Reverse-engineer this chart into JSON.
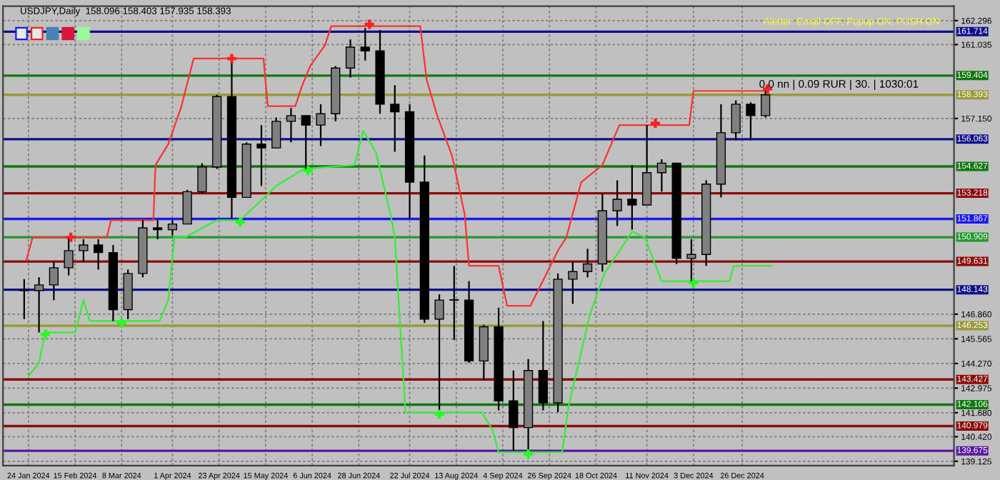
{
  "chart_data": {
    "type": "candlestick",
    "title": "USDJPY,Daily  158.096 158.403 157.935 158.393",
    "annotations": [
      "Alerter: Email OFF, Popup ON, PUSH ON",
      "0.0 nn | 0.09 RUR | 30. | 1030:01"
    ],
    "x": [
      "2024-01-22",
      "2024-01-29",
      "2024-02-05",
      "2024-02-12",
      "2024-02-19",
      "2024-02-26",
      "2024-03-04",
      "2024-03-11",
      "2024-03-18",
      "2024-03-25",
      "2024-04-01",
      "2024-04-08",
      "2024-04-15",
      "2024-04-22",
      "2024-04-29",
      "2024-05-06",
      "2024-05-13",
      "2024-05-20",
      "2024-05-27",
      "2024-06-03",
      "2024-06-10",
      "2024-06-17",
      "2024-06-24",
      "2024-07-01",
      "2024-07-08",
      "2024-07-15",
      "2024-07-22",
      "2024-07-29",
      "2024-08-05",
      "2024-08-12",
      "2024-08-19",
      "2024-08-26",
      "2024-09-02",
      "2024-09-09",
      "2024-09-16",
      "2024-09-23",
      "2024-09-30",
      "2024-10-07",
      "2024-10-14",
      "2024-10-21",
      "2024-10-28",
      "2024-11-04",
      "2024-11-11",
      "2024-11-18",
      "2024-11-25",
      "2024-12-02",
      "2024-12-09",
      "2024-12-16",
      "2024-12-23",
      "2024-12-30",
      "2025-01-06"
    ],
    "ohlc": [
      [
        148.1,
        148.7,
        146.6,
        148.1
      ],
      [
        148.1,
        148.8,
        145.9,
        148.4
      ],
      [
        148.4,
        149.6,
        147.6,
        149.3
      ],
      [
        149.3,
        150.9,
        148.9,
        150.2
      ],
      [
        150.2,
        150.8,
        149.6,
        150.5
      ],
      [
        150.5,
        150.8,
        149.2,
        150.1
      ],
      [
        150.1,
        150.5,
        146.5,
        147.1
      ],
      [
        147.1,
        149.2,
        146.6,
        149.0
      ],
      [
        149.0,
        151.8,
        148.8,
        151.4
      ],
      [
        151.4,
        151.8,
        150.8,
        151.3
      ],
      [
        151.3,
        151.8,
        151.0,
        151.6
      ],
      [
        151.6,
        153.4,
        151.6,
        153.3
      ],
      [
        153.3,
        154.8,
        153.2,
        154.6
      ],
      [
        154.6,
        158.4,
        154.5,
        158.3
      ],
      [
        158.3,
        160.2,
        151.9,
        153.0
      ],
      [
        153.0,
        155.9,
        153.0,
        155.8
      ],
      [
        155.8,
        156.8,
        153.6,
        155.6
      ],
      [
        155.6,
        157.2,
        155.6,
        157.0
      ],
      [
        157.0,
        157.7,
        155.9,
        157.3
      ],
      [
        157.3,
        157.3,
        154.5,
        156.8
      ],
      [
        156.8,
        157.9,
        155.7,
        157.4
      ],
      [
        157.4,
        159.9,
        157.0,
        159.8
      ],
      [
        159.8,
        161.3,
        159.3,
        160.9
      ],
      [
        160.9,
        161.9,
        160.2,
        160.7
      ],
      [
        160.7,
        161.8,
        157.4,
        157.9
      ],
      [
        157.9,
        158.9,
        155.4,
        157.5
      ],
      [
        157.5,
        157.9,
        151.9,
        153.8
      ],
      [
        153.8,
        155.2,
        146.4,
        146.6
      ],
      [
        146.6,
        147.9,
        141.7,
        147.6
      ],
      [
        147.6,
        149.4,
        145.5,
        147.6
      ],
      [
        147.6,
        148.6,
        144.3,
        144.4
      ],
      [
        144.4,
        146.3,
        143.4,
        146.2
      ],
      [
        146.2,
        147.2,
        141.8,
        142.3
      ],
      [
        142.3,
        143.9,
        139.7,
        140.9
      ],
      [
        140.9,
        144.5,
        139.6,
        143.9
      ],
      [
        143.9,
        146.5,
        141.8,
        142.2
      ],
      [
        142.2,
        149.0,
        141.7,
        148.7
      ],
      [
        148.7,
        149.6,
        147.4,
        149.1
      ],
      [
        149.1,
        150.3,
        148.8,
        149.5
      ],
      [
        149.5,
        153.2,
        149.1,
        152.3
      ],
      [
        152.3,
        153.9,
        151.5,
        152.9
      ],
      [
        152.9,
        154.7,
        151.3,
        152.6
      ],
      [
        152.6,
        156.8,
        152.6,
        154.3
      ],
      [
        154.3,
        155.0,
        153.3,
        154.8
      ],
      [
        154.8,
        154.8,
        149.5,
        149.8
      ],
      [
        149.8,
        150.8,
        148.6,
        150.0
      ],
      [
        150.0,
        153.9,
        149.4,
        153.7
      ],
      [
        153.7,
        157.9,
        153.0,
        156.4
      ],
      [
        156.4,
        158.1,
        156.0,
        157.9
      ],
      [
        157.9,
        158.0,
        156.0,
        157.3
      ],
      [
        157.3,
        158.6,
        157.2,
        158.393
      ]
    ],
    "series": [
      {
        "type": "line",
        "color": "#ff3030",
        "x": [
          "2024-01-23",
          "2024-01-26",
          "2024-03-01",
          "2024-03-03",
          "2024-03-23",
          "2024-03-24",
          "2024-03-30",
          "2024-04-05",
          "2024-04-11",
          "2024-05-14",
          "2024-05-16",
          "2024-05-29",
          "2024-06-01",
          "2024-06-05",
          "2024-06-12",
          "2024-06-15",
          "2024-07-27",
          "2024-07-30",
          "2024-08-04",
          "2024-08-11",
          "2024-08-17",
          "2024-08-19",
          "2024-09-02",
          "2024-09-06",
          "2024-09-17",
          "2024-09-30",
          "2024-10-04",
          "2024-10-11",
          "2024-10-21",
          "2024-10-29",
          "2024-12-01",
          "2024-12-03",
          "2025-01-06"
        ],
        "values": [
          149.7,
          150.9,
          150.9,
          151.8,
          151.8,
          154.7,
          155.8,
          157.7,
          160.3,
          160.3,
          157.8,
          157.8,
          158.8,
          159.9,
          161.0,
          162.0,
          162.0,
          159.2,
          157.3,
          155.2,
          152.1,
          149.4,
          149.4,
          147.3,
          147.3,
          150.2,
          150.9,
          153.8,
          154.7,
          156.8,
          156.8,
          158.6,
          158.6
        ]
      },
      {
        "type": "line",
        "color": "#33ee33",
        "x": [
          "2024-01-24",
          "2024-01-29",
          "2024-02-01",
          "2024-02-15",
          "2024-02-19",
          "2024-02-22",
          "2024-03-26",
          "2024-03-30",
          "2024-04-02",
          "2024-04-07",
          "2024-04-22",
          "2024-05-03",
          "2024-05-20",
          "2024-06-02",
          "2024-06-26",
          "2024-06-30",
          "2024-07-06",
          "2024-07-13",
          "2024-07-15",
          "2024-07-20",
          "2024-08-25",
          "2024-08-30",
          "2024-09-02",
          "2024-10-02",
          "2024-10-05",
          "2024-10-15",
          "2024-10-22",
          "2024-11-04",
          "2024-11-10",
          "2024-11-18",
          "2024-12-20",
          "2024-12-22",
          "2025-01-09"
        ],
        "values": [
          143.6,
          144.3,
          145.9,
          145.9,
          147.6,
          146.5,
          146.5,
          147.6,
          150.9,
          150.9,
          151.8,
          151.8,
          153.6,
          154.5,
          154.7,
          156.5,
          155.4,
          152.1,
          150.9,
          141.7,
          141.7,
          140.8,
          139.6,
          139.6,
          142.0,
          146.8,
          149.0,
          151.2,
          150.9,
          148.6,
          148.6,
          149.4,
          149.4
        ]
      },
      {
        "type": "scatter",
        "color": "#ff2020",
        "marker": "cross",
        "x": [
          "2024-02-13",
          "2024-04-29",
          "2024-07-03",
          "2024-11-15",
          "2025-01-07"
        ],
        "values": [
          150.9,
          160.3,
          162.1,
          156.9,
          158.7
        ]
      },
      {
        "type": "scatter",
        "color": "#22ff22",
        "marker": "cross",
        "x": [
          "2024-02-01",
          "2024-03-08",
          "2024-05-03",
          "2024-06-04",
          "2024-08-05",
          "2024-09-16",
          "2024-12-03"
        ],
        "values": [
          145.8,
          146.4,
          151.7,
          154.4,
          141.6,
          139.5,
          148.5
        ]
      }
    ],
    "xlim": [
      "2024-01-12",
      "2025-04-05"
    ],
    "xticks": [
      {
        "value": "2024-01-24",
        "label": "24 Jan 2024"
      },
      {
        "value": "2024-02-15",
        "label": "15 Feb 2024"
      },
      {
        "value": "2024-03-08",
        "label": "8 Mar 2024"
      },
      {
        "value": "2024-04-01",
        "label": "1 Apr 2024"
      },
      {
        "value": "2024-04-23",
        "label": "23 Apr 2024"
      },
      {
        "value": "2024-05-15",
        "label": "15 May 2024"
      },
      {
        "value": "2024-06-06",
        "label": "6 Jun 2024"
      },
      {
        "value": "2024-06-28",
        "label": "28 Jun 2024"
      },
      {
        "value": "2024-07-22",
        "label": "22 Jul 2024"
      },
      {
        "value": "2024-08-13",
        "label": "13 Aug 2024"
      },
      {
        "value": "2024-09-04",
        "label": "4 Sep 2024"
      },
      {
        "value": "2024-09-26",
        "label": "26 Sep 2024"
      },
      {
        "value": "2024-10-18",
        "label": "18 Oct 2024"
      },
      {
        "value": "2024-11-11",
        "label": "11 Nov 2024"
      },
      {
        "value": "2024-12-03",
        "label": "3 Dec 2024"
      },
      {
        "value": "2024-12-26",
        "label": "26 Dec 2024"
      }
    ],
    "ylim": [
      138.9,
      163.05
    ],
    "yticks": [
      {
        "value": 162.296,
        "label": "162.296"
      },
      {
        "value": 161.035,
        "label": "161.035"
      },
      {
        "value": 157.15,
        "label": "157.150"
      },
      {
        "value": 146.86,
        "label": "146.860"
      },
      {
        "value": 145.565,
        "label": "145.565"
      },
      {
        "value": 144.27,
        "label": "144.270"
      },
      {
        "value": 142.975,
        "label": "142.975"
      },
      {
        "value": 141.68,
        "label": "141.680"
      },
      {
        "value": 140.42,
        "label": "140.420"
      },
      {
        "value": 139.125,
        "label": "139.125"
      }
    ],
    "ref_lines": [
      {
        "axis": "y",
        "value": 161.714,
        "label": "161.714",
        "color": "#10108c"
      },
      {
        "axis": "y",
        "value": 159.404,
        "label": "159.404",
        "color": "#117711"
      },
      {
        "axis": "y",
        "value": 158.393,
        "label": "158.393",
        "color": "#9a9a3a"
      },
      {
        "axis": "y",
        "value": 156.063,
        "label": "156.063",
        "color": "#10108c"
      },
      {
        "axis": "y",
        "value": 154.627,
        "label": "154.627",
        "color": "#117711"
      },
      {
        "axis": "y",
        "value": 153.218,
        "label": "153.218",
        "color": "#8b0a0a"
      },
      {
        "axis": "y",
        "value": 151.867,
        "label": "151.867",
        "color": "#1a1aee"
      },
      {
        "axis": "y",
        "value": 150.909,
        "label": "150.909",
        "color": "#22992a"
      },
      {
        "axis": "y",
        "value": 149.631,
        "label": "149.631",
        "color": "#8b0a0a"
      },
      {
        "axis": "y",
        "value": 148.143,
        "label": "148.143",
        "color": "#10108c"
      },
      {
        "axis": "y",
        "value": 146.253,
        "label": "146.253",
        "color": "#9a9a3a"
      },
      {
        "axis": "y",
        "value": 143.427,
        "label": "143.427",
        "color": "#8b0a0a"
      },
      {
        "axis": "y",
        "value": 142.106,
        "label": "142.106",
        "color": "#117711"
      },
      {
        "axis": "y",
        "value": 140.979,
        "label": "140.979",
        "color": "#8b0a0a"
      },
      {
        "axis": "y",
        "value": 139.675,
        "label": "139.675",
        "color": "#5a1aa0"
      }
    ],
    "grid": true
  }
}
